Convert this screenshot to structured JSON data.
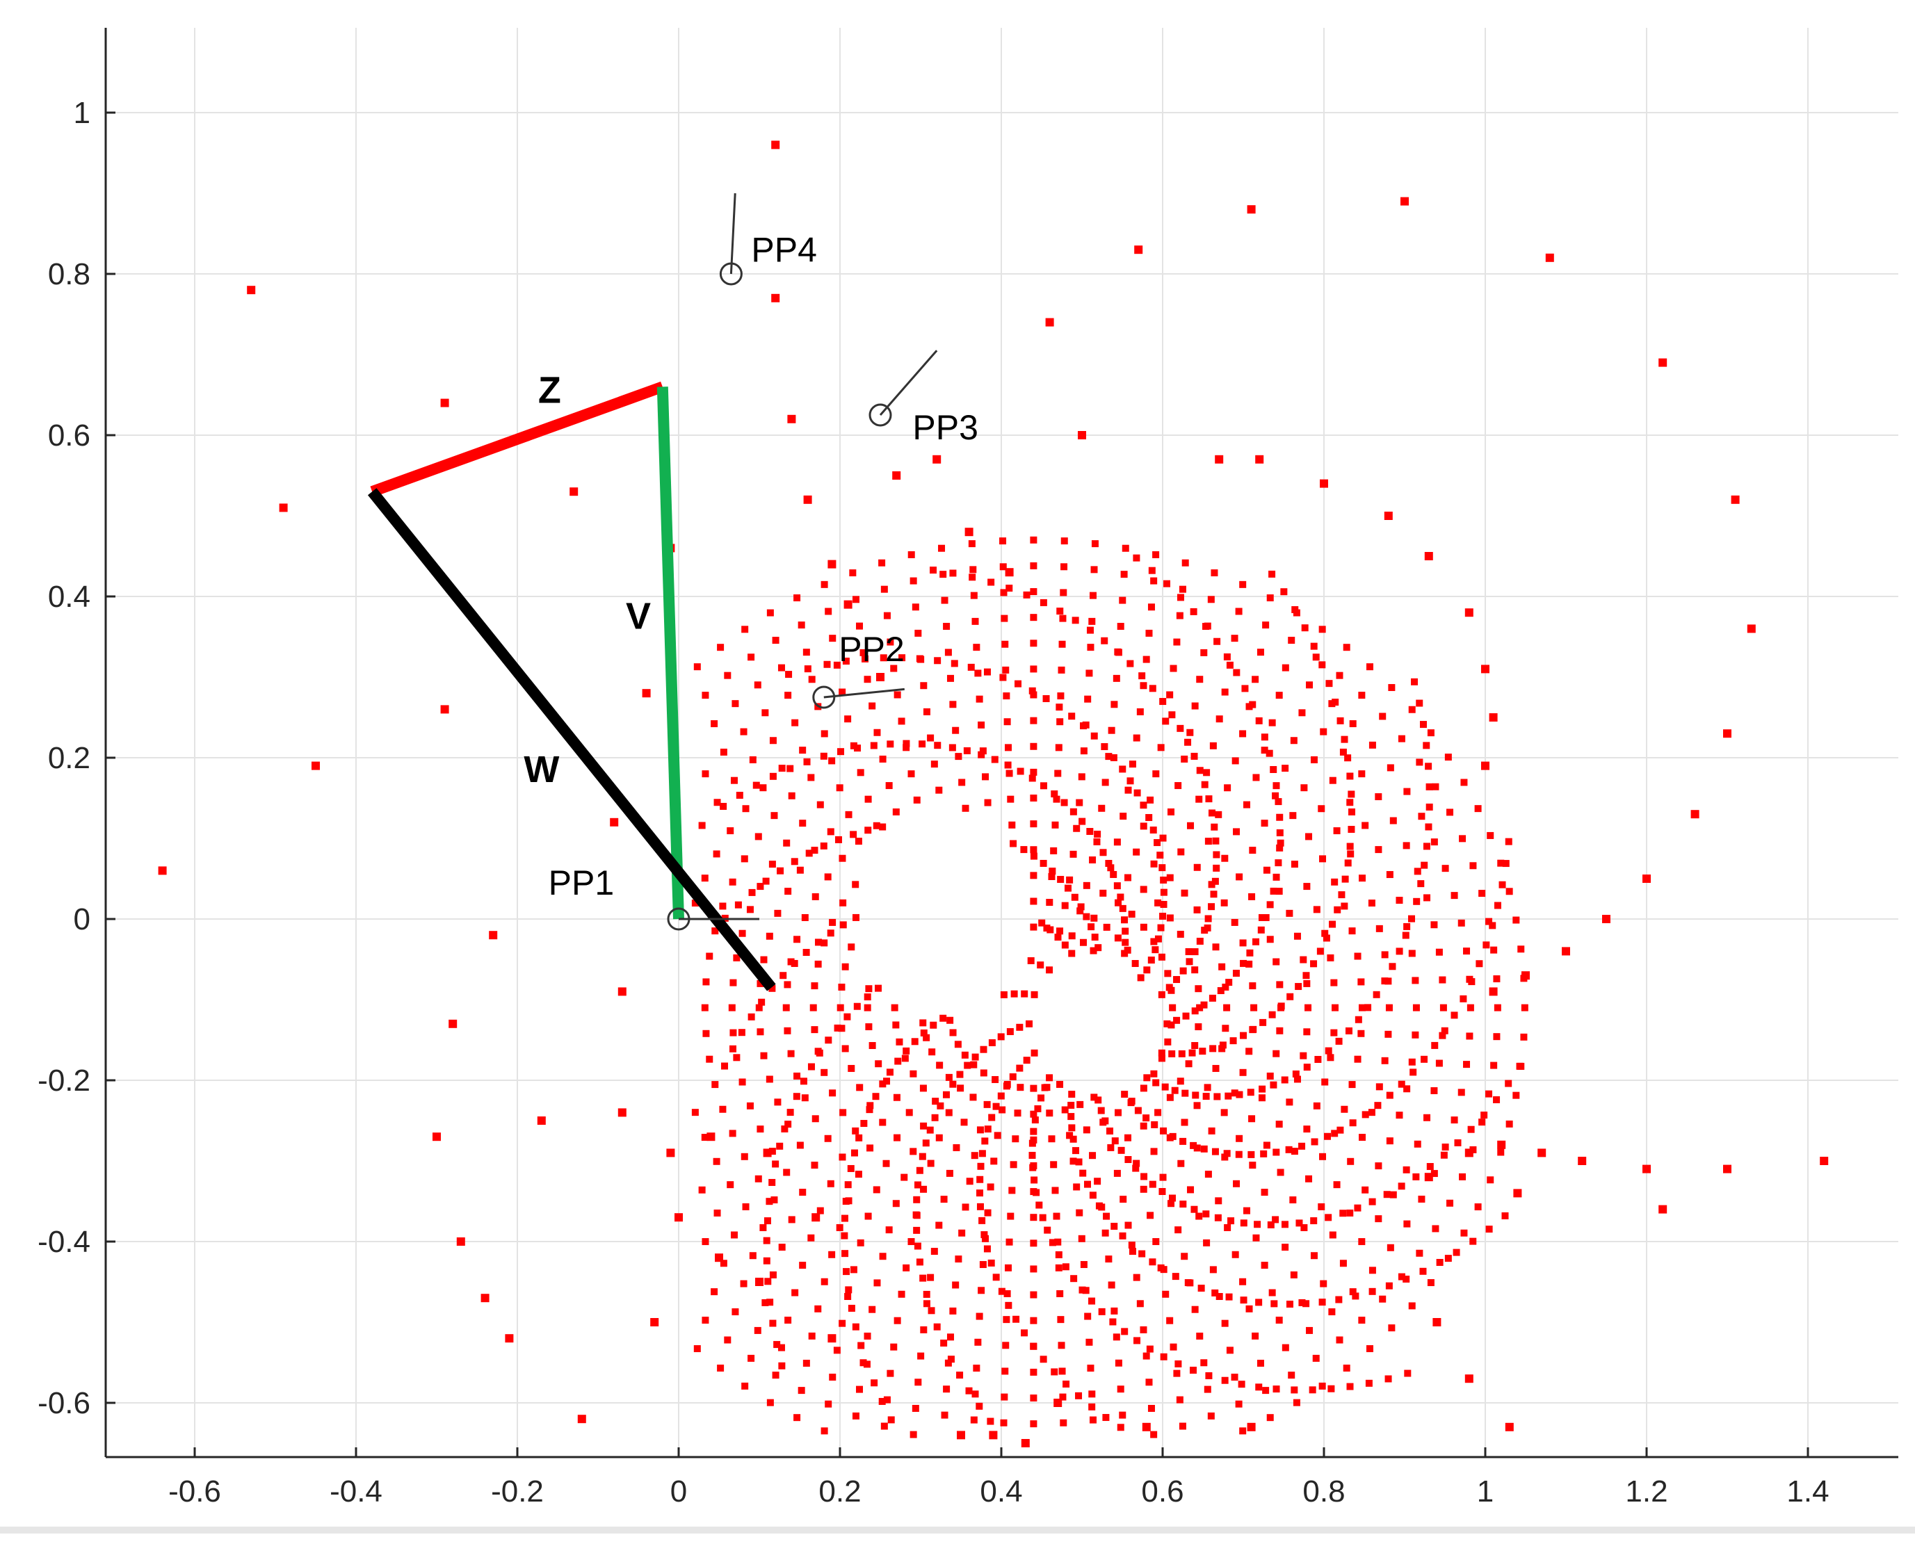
{
  "chart_data": {
    "type": "scatter",
    "title": "",
    "xlabel": "",
    "ylabel": "",
    "xlim": [
      -0.71,
      1.52
    ],
    "ylim": [
      -0.66,
      1.1
    ],
    "grid": true,
    "xticks": [
      -0.6,
      -0.4,
      -0.2,
      0,
      0.2,
      0.4,
      0.6,
      0.8,
      1,
      1.2,
      1.4
    ],
    "yticks": [
      -0.6,
      -0.4,
      -0.2,
      0,
      0.2,
      0.4,
      0.6,
      0.8,
      1
    ],
    "xtick_labels": [
      "-0.6",
      "-0.4",
      "-0.2",
      "0",
      "0.2",
      "0.4",
      "0.6",
      "0.8",
      "1",
      "1.2",
      "1.4"
    ],
    "ytick_labels": [
      "-0.6",
      "-0.4",
      "-0.2",
      "0",
      "0.2",
      "0.4",
      "0.6",
      "0.8",
      "1"
    ],
    "scatter": {
      "color": "#ff0000",
      "isolated_points": [
        [
          -0.64,
          0.06
        ],
        [
          -0.53,
          0.78
        ],
        [
          -0.49,
          0.51
        ],
        [
          -0.45,
          0.19
        ],
        [
          -0.29,
          0.64
        ],
        [
          -0.29,
          0.26
        ],
        [
          -0.28,
          -0.13
        ],
        [
          -0.27,
          -0.4
        ],
        [
          -0.24,
          -0.47
        ],
        [
          -0.21,
          -0.52
        ],
        [
          -0.23,
          -0.02
        ],
        [
          -0.3,
          -0.27
        ],
        [
          -0.17,
          -0.25
        ],
        [
          -0.13,
          0.53
        ],
        [
          -0.12,
          -0.62
        ],
        [
          -0.08,
          0.12
        ],
        [
          -0.07,
          -0.09
        ],
        [
          -0.07,
          -0.24
        ],
        [
          -0.04,
          0.28
        ],
        [
          -0.03,
          -0.5
        ],
        [
          -0.01,
          0.46
        ],
        [
          0.12,
          0.96
        ],
        [
          0.12,
          0.77
        ],
        [
          0.14,
          0.62
        ],
        [
          0.16,
          0.52
        ],
        [
          0.19,
          0.44
        ],
        [
          0.21,
          0.39
        ],
        [
          0.25,
          0.3
        ],
        [
          0.27,
          0.55
        ],
        [
          0.32,
          0.57
        ],
        [
          0.36,
          0.48
        ],
        [
          0.41,
          0.43
        ],
        [
          0.46,
          0.74
        ],
        [
          0.5,
          0.6
        ],
        [
          0.57,
          0.83
        ],
        [
          0.67,
          0.57
        ],
        [
          0.71,
          0.88
        ],
        [
          0.72,
          0.57
        ],
        [
          0.8,
          0.54
        ],
        [
          0.88,
          0.5
        ],
        [
          0.9,
          0.89
        ],
        [
          0.93,
          0.45
        ],
        [
          0.98,
          0.38
        ],
        [
          1.0,
          0.31
        ],
        [
          1.01,
          0.25
        ],
        [
          1.0,
          0.19
        ],
        [
          1.08,
          0.82
        ],
        [
          1.22,
          0.69
        ],
        [
          1.31,
          0.52
        ],
        [
          1.33,
          0.36
        ],
        [
          1.3,
          0.23
        ],
        [
          1.26,
          0.13
        ],
        [
          1.2,
          0.05
        ],
        [
          1.15,
          0.0
        ],
        [
          1.1,
          -0.04
        ],
        [
          1.05,
          -0.07
        ],
        [
          1.01,
          -0.09
        ],
        [
          1.02,
          -0.28
        ],
        [
          1.07,
          -0.29
        ],
        [
          1.12,
          -0.3
        ],
        [
          1.2,
          -0.31
        ],
        [
          1.3,
          -0.31
        ],
        [
          1.42,
          -0.3
        ],
        [
          1.22,
          -0.36
        ],
        [
          1.04,
          -0.34
        ],
        [
          0.98,
          -0.29
        ],
        [
          0.93,
          -0.32
        ],
        [
          0.94,
          -0.5
        ],
        [
          0.98,
          -0.57
        ],
        [
          1.03,
          -0.63
        ],
        [
          0.71,
          -0.63
        ],
        [
          0.58,
          -0.63
        ],
        [
          0.43,
          -0.65
        ],
        [
          0.39,
          -0.64
        ],
        [
          0.35,
          -0.64
        ],
        [
          0.47,
          -0.6
        ],
        [
          0.19,
          -0.52
        ],
        [
          0.1,
          -0.45
        ],
        [
          0.05,
          -0.42
        ],
        [
          0.0,
          -0.37
        ],
        [
          -0.01,
          -0.29
        ],
        [
          0.04,
          -0.27
        ],
        [
          0.11,
          -0.29
        ],
        [
          0.17,
          -0.37
        ]
      ],
      "dense_region": {
        "description_center": [
          0.51,
          -0.13
        ],
        "inner_hole_center": [
          0.52,
          -0.13
        ],
        "inner_hole_radii": [
          0.07,
          0.085
        ],
        "outer_hole_center": [
          0.33,
          0.01
        ],
        "spiral_arms": 16
      }
    },
    "links": [
      {
        "label": "Z",
        "color": "#ff0000",
        "from": [
          -0.38,
          0.53
        ],
        "to": [
          -0.02,
          0.66
        ]
      },
      {
        "label": "V",
        "color": "#12b050",
        "from": [
          -0.02,
          0.66
        ],
        "to": [
          0.0,
          0.0
        ]
      },
      {
        "label": "W",
        "color": "#000000",
        "from": [
          -0.38,
          0.53
        ],
        "to": [
          0.115,
          -0.085
        ]
      }
    ],
    "precision_points": [
      {
        "label": "PP1",
        "x": 0.0,
        "y": 0.0,
        "dir": [
          0.1,
          0.0
        ]
      },
      {
        "label": "PP2",
        "x": 0.18,
        "y": 0.275,
        "dir": [
          0.1,
          0.01
        ]
      },
      {
        "label": "PP3",
        "x": 0.25,
        "y": 0.625,
        "dir": [
          0.07,
          0.08
        ]
      },
      {
        "label": "PP4",
        "x": 0.065,
        "y": 0.8,
        "dir": [
          0.005,
          0.1
        ]
      }
    ]
  }
}
